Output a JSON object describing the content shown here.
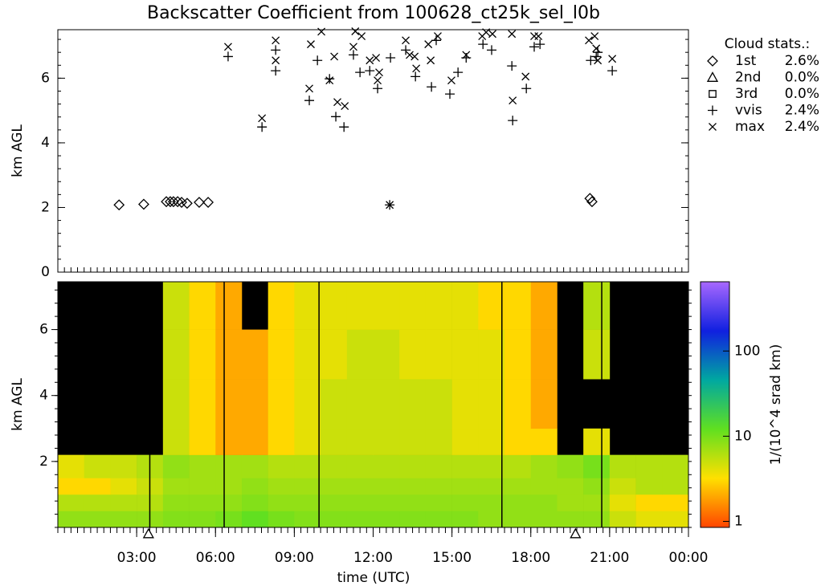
{
  "chart_data": [
    {
      "type": "scatter",
      "title": "Backscatter Coefficient from 100628_ct25k_sel_l0b",
      "ylabel": "km AGL",
      "xlim": [
        0,
        24
      ],
      "xminor": 0.25,
      "ylim": [
        0,
        7.5
      ],
      "yticks": [
        0,
        2,
        4,
        6
      ],
      "yminor": 0.4,
      "legend_title": "Cloud stats.:",
      "legend": "right",
      "series": [
        {
          "name": "1st",
          "marker": "diamond",
          "color": "#000000",
          "stat": 2.6,
          "stat_label": "2.6%",
          "x": [
            2.33,
            3.27,
            4.13,
            4.28,
            4.4,
            4.56,
            4.71,
            4.92,
            5.38,
            5.72,
            20.25,
            20.33
          ],
          "y": [
            2.08,
            2.1,
            2.18,
            2.18,
            2.18,
            2.18,
            2.16,
            2.13,
            2.16,
            2.16,
            2.28,
            2.18
          ]
        },
        {
          "name": "2nd",
          "marker": "triangle",
          "color": "#000000",
          "stat": 0.0,
          "stat_label": "0.0%",
          "x": [],
          "y": []
        },
        {
          "name": "3rd",
          "marker": "square",
          "color": "#000000",
          "stat": 0.0,
          "stat_label": "0.0%",
          "x": [],
          "y": []
        },
        {
          "name": "vvis",
          "marker": "plus",
          "color": "#000000",
          "stat": 2.4,
          "stat_label": "2.4%",
          "x": [
            6.48,
            7.77,
            8.29,
            8.29,
            9.57,
            9.88,
            10.34,
            10.58,
            10.89,
            11.25,
            11.5,
            11.87,
            12.17,
            12.63,
            12.66,
            13.24,
            13.61,
            14.22,
            14.4,
            14.92,
            15.23,
            15.54,
            16.18,
            16.51,
            17.28,
            17.31,
            17.83,
            18.13,
            18.35,
            20.28,
            20.49,
            20.55,
            21.1
          ],
          "y": [
            6.67,
            4.49,
            6.87,
            6.23,
            5.31,
            6.55,
            5.98,
            4.81,
            4.49,
            6.72,
            6.18,
            6.23,
            5.68,
            2.08,
            6.63,
            6.87,
            6.05,
            5.73,
            7.17,
            5.51,
            6.18,
            6.63,
            7.05,
            6.87,
            6.38,
            4.69,
            5.68,
            6.97,
            7.05,
            6.55,
            6.67,
            6.8,
            6.23
          ]
        },
        {
          "name": "max",
          "marker": "cross",
          "color": "#000000",
          "stat": 2.4,
          "stat_label": "2.4%",
          "x": [
            6.48,
            7.77,
            8.29,
            8.29,
            9.57,
            9.63,
            10.03,
            10.34,
            10.52,
            10.64,
            10.92,
            11.25,
            11.32,
            11.56,
            11.87,
            12.11,
            12.17,
            12.23,
            12.63,
            13.24,
            13.39,
            13.58,
            13.64,
            14.1,
            14.19,
            14.46,
            14.98,
            15.54,
            16.15,
            16.3,
            16.54,
            17.28,
            17.31,
            17.8,
            18.13,
            18.29,
            20.21,
            20.43,
            20.49,
            20.55,
            21.1
          ],
          "y": [
            6.97,
            4.76,
            7.17,
            6.55,
            5.68,
            7.05,
            7.44,
            5.93,
            6.67,
            5.26,
            5.14,
            6.97,
            7.45,
            7.3,
            6.55,
            6.63,
            5.93,
            6.18,
            2.08,
            7.17,
            6.72,
            6.67,
            6.3,
            7.05,
            6.55,
            7.3,
            5.93,
            6.72,
            7.3,
            7.42,
            7.37,
            7.37,
            5.31,
            6.05,
            7.3,
            7.3,
            7.17,
            7.3,
            6.92,
            6.55,
            6.6
          ]
        }
      ]
    },
    {
      "type": "heatmap",
      "ylabel": "km AGL",
      "xlabel": "time (UTC)",
      "xlim": [
        0,
        24
      ],
      "xminor": 0.25,
      "xticks": [
        {
          "value": 3,
          "label": "03:00"
        },
        {
          "value": 6,
          "label": "06:00"
        },
        {
          "value": 9,
          "label": "09:00"
        },
        {
          "value": 12,
          "label": "12:00"
        },
        {
          "value": 15,
          "label": "15:00"
        },
        {
          "value": 18,
          "label": "18:00"
        },
        {
          "value": 21,
          "label": "21:00"
        },
        {
          "value": 24,
          "label": "00:00"
        }
      ],
      "ylim": [
        0,
        7.45
      ],
      "yticks": [
        2,
        4,
        6
      ],
      "yminor": 0.4,
      "xbins": [
        0,
        1,
        2,
        3,
        4,
        5,
        6,
        7,
        8,
        9,
        10,
        11,
        12,
        13,
        14,
        15,
        16,
        17,
        18,
        19,
        20,
        21,
        22,
        23,
        24
      ],
      "ybins": [
        0,
        0.5,
        1,
        1.5,
        2.2,
        3,
        4.5,
        6,
        7.45
      ],
      "z": [
        [
          8,
          8,
          8,
          8,
          9,
          9,
          10,
          12,
          10,
          9,
          9,
          9,
          9,
          9,
          9,
          9,
          8,
          8,
          8,
          8,
          8,
          5,
          4,
          4
        ],
        [
          6,
          6,
          6,
          6,
          8,
          8,
          8,
          9,
          8,
          8,
          8,
          8,
          8,
          8,
          8,
          8,
          8,
          8,
          8,
          7,
          7,
          4,
          3,
          3
        ],
        [
          3,
          3,
          4,
          5,
          7,
          7,
          7,
          8,
          7,
          7,
          7,
          7,
          7,
          7,
          7,
          7,
          7,
          7,
          7,
          7,
          8,
          5,
          6,
          6
        ],
        [
          4,
          5,
          5,
          6,
          8,
          7,
          7,
          7,
          6,
          6,
          6,
          6,
          6,
          6,
          6,
          6,
          6,
          6,
          7,
          8,
          10,
          6,
          6,
          6
        ],
        [
          null,
          null,
          null,
          null,
          5,
          3,
          2,
          2,
          3,
          4,
          5,
          5,
          5,
          5,
          5,
          4,
          4,
          3,
          3,
          null,
          4,
          null,
          null,
          null
        ],
        [
          null,
          null,
          null,
          null,
          5,
          3,
          2,
          2,
          3,
          4,
          5,
          5,
          5,
          5,
          5,
          4,
          4,
          3,
          2,
          null,
          null,
          null,
          null,
          null
        ],
        [
          null,
          null,
          null,
          null,
          5,
          3,
          2,
          2,
          3,
          4,
          4,
          5,
          5,
          4,
          4,
          4,
          4,
          3,
          2,
          null,
          5,
          null,
          null,
          null
        ],
        [
          null,
          null,
          null,
          null,
          5,
          3,
          2,
          null,
          3,
          4,
          4,
          4,
          4,
          4,
          4,
          4,
          3,
          3,
          2,
          null,
          6,
          null,
          null,
          null
        ]
      ],
      "clim": [
        0.85,
        650
      ],
      "cticks": [
        1,
        10,
        100
      ],
      "log_colorbar": true,
      "colors": [
        "#ff4500",
        "#ffe000",
        "#60e020",
        "#00a8a0",
        "#1020e0",
        "#a868ff"
      ],
      "colorbar_label": "1/(10^4 srad km)",
      "vlines_x": [
        3.5,
        6.33,
        9.94,
        16.9,
        20.7
      ],
      "triangles_x": [
        3.45,
        19.7
      ]
    }
  ]
}
